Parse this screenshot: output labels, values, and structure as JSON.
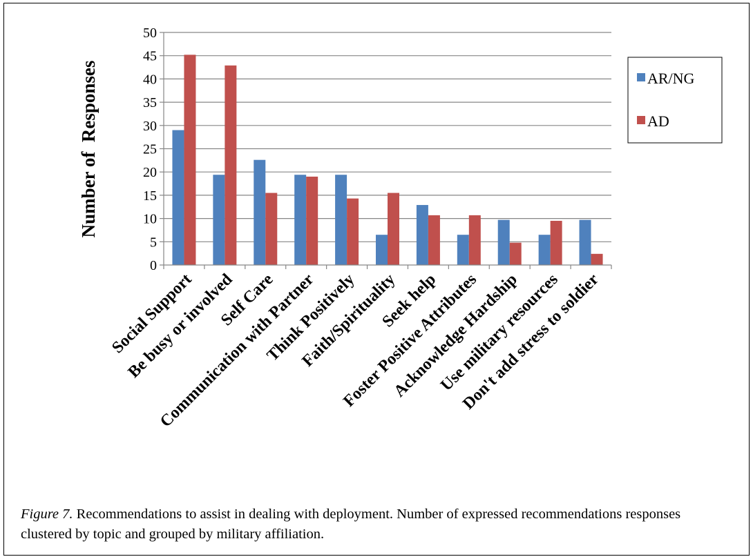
{
  "chart_data": {
    "type": "bar",
    "title": "",
    "xlabel": "",
    "ylabel": "Number of  Responses",
    "ylim": [
      0,
      50
    ],
    "yticks": [
      0,
      5,
      10,
      15,
      20,
      25,
      30,
      35,
      40,
      45,
      50
    ],
    "grid": true,
    "legend_position": "right",
    "categories": [
      "Social Support",
      "Be busy or involved",
      "Self Care",
      "Communication with Partner",
      "Think Positively",
      "Faith/Spirituality",
      "Seek help",
      "Foster Positive Attributes",
      "Acknowledge Hardship",
      "Use military resources",
      "Don't add stress to soldier"
    ],
    "series": [
      {
        "name": "AR/NG",
        "color": "#4F81BD",
        "values": [
          29,
          19.4,
          22.6,
          19.4,
          19.4,
          6.5,
          12.9,
          6.5,
          9.7,
          6.5,
          9.7
        ]
      },
      {
        "name": "AD",
        "color": "#C0504D",
        "values": [
          45.2,
          42.9,
          15.5,
          19,
          14.3,
          15.5,
          10.7,
          10.7,
          4.8,
          9.5,
          2.4
        ]
      }
    ]
  },
  "caption": {
    "label": "Figure 7.",
    "text": " Recommendations to assist in dealing with deployment. Number of expressed recommendations responses clustered by topic and grouped by military affiliation."
  }
}
